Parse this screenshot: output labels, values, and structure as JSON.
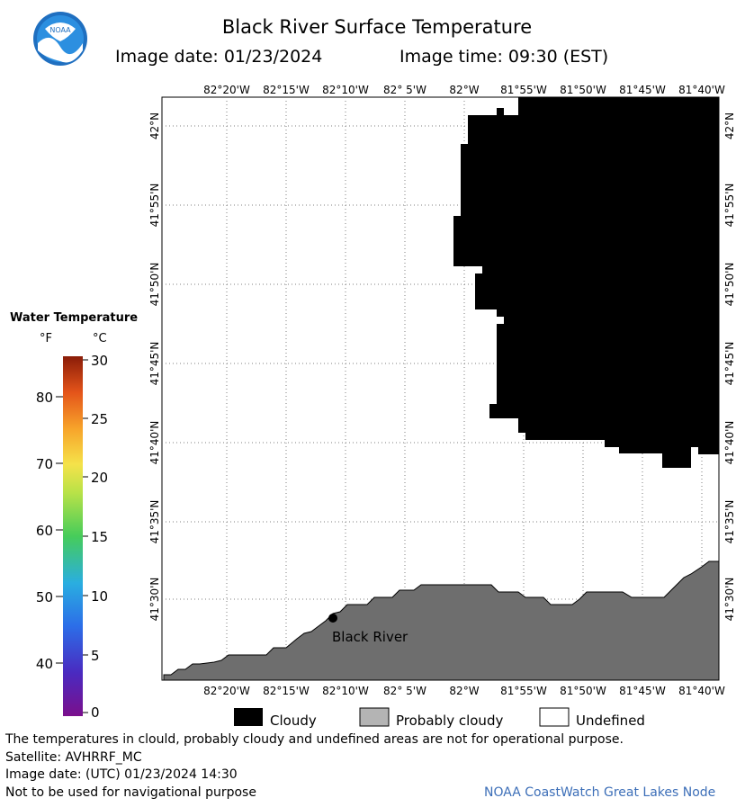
{
  "header": {
    "title": "Black River Surface Temperature",
    "image_date": "Image date: 01/23/2024",
    "image_time": "Image time: 09:30 (EST)",
    "logo_text": "NOAA"
  },
  "map": {
    "lon_labels": [
      "82°20'W",
      "82°15'W",
      "82°10'W",
      "82° 5'W",
      "82°W",
      "81°55'W",
      "81°50'W",
      "81°45'W",
      "81°40'W"
    ],
    "lat_labels": [
      "42°N",
      "41°55'N",
      "41°50'N",
      "41°45'N",
      "41°40'N",
      "41°35'N",
      "41°30'N"
    ],
    "place_label": "Black River",
    "colors": {
      "cloud": "#000000",
      "land": "#6e6e6e",
      "undefined": "#ffffff",
      "grid": "#7f7f7f"
    }
  },
  "scale": {
    "title": "Water Temperature",
    "unit_f": "°F",
    "unit_c": "°C",
    "f_ticks": [
      "80",
      "70",
      "60",
      "50",
      "40"
    ],
    "c_ticks": [
      "30",
      "25",
      "20",
      "15",
      "10",
      "5",
      "0"
    ],
    "colors": [
      "#6a0f8c",
      "#3a4fd8",
      "#2aa0e6",
      "#3cc8a0",
      "#5fd24c",
      "#d8e84a",
      "#f6b52e",
      "#f07e1c",
      "#c83a0c",
      "#7a1a06"
    ]
  },
  "legend": {
    "cloudy": "Cloudy",
    "probably_cloudy": "Probably cloudy",
    "undefined": "Undefined"
  },
  "footer": {
    "disclaimer": "The temperatures in clould, probably cloudy and undefined areas are not for operational purpose.",
    "satellite": "Satellite: AVHRRF_MC",
    "utc_date": "Image date: (UTC) 01/23/2024  14:30",
    "nav_warning": "Not to be used for navigational purpose",
    "credit": "NOAA CoastWatch Great Lakes Node"
  }
}
